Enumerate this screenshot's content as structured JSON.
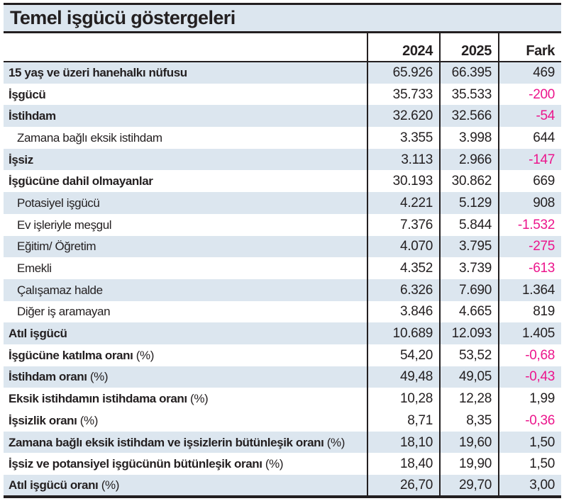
{
  "title": "Temel işgücü göstergeleri",
  "colors": {
    "text_black": "#231F20",
    "band_blue": "#DCE6EF",
    "negative_pink": "#EC158C"
  },
  "columns": [
    {
      "key": "label",
      "label": ""
    },
    {
      "key": "y2024",
      "label": "2024"
    },
    {
      "key": "y2025",
      "label": "2025"
    },
    {
      "key": "fark",
      "label": "Fark"
    }
  ],
  "rows": [
    {
      "label": "15 yaş ve üzeri hanehalkı nüfusu",
      "suffix": "",
      "bold": true,
      "indent": false,
      "shaded": true,
      "y2024": "65.926",
      "y2025": "66.395",
      "fark": "469"
    },
    {
      "label": "İşgücü",
      "suffix": "",
      "bold": true,
      "indent": false,
      "shaded": false,
      "y2024": "35.733",
      "y2025": "35.533",
      "fark": "-200"
    },
    {
      "label": "İstihdam",
      "suffix": "",
      "bold": true,
      "indent": false,
      "shaded": true,
      "y2024": "32.620",
      "y2025": "32.566",
      "fark": "-54"
    },
    {
      "label": "Zamana bağlı eksik istihdam",
      "suffix": "",
      "bold": false,
      "indent": true,
      "shaded": false,
      "y2024": "3.355",
      "y2025": "3.998",
      "fark": "644"
    },
    {
      "label": "İşsiz",
      "suffix": "",
      "bold": true,
      "indent": false,
      "shaded": true,
      "y2024": "3.113",
      "y2025": "2.966",
      "fark": "-147"
    },
    {
      "label": "İşgücüne dahil olmayanlar",
      "suffix": "",
      "bold": true,
      "indent": false,
      "shaded": false,
      "y2024": "30.193",
      "y2025": "30.862",
      "fark": "669"
    },
    {
      "label": "Potasiyel işgücü",
      "suffix": "",
      "bold": false,
      "indent": true,
      "shaded": true,
      "y2024": "4.221",
      "y2025": "5.129",
      "fark": "908"
    },
    {
      "label": "Ev işleriyle meşgul",
      "suffix": "",
      "bold": false,
      "indent": true,
      "shaded": false,
      "y2024": "7.376",
      "y2025": "5.844",
      "fark": "-1.532"
    },
    {
      "label": "Eğitim/ Öğretim",
      "suffix": "",
      "bold": false,
      "indent": true,
      "shaded": true,
      "y2024": "4.070",
      "y2025": "3.795",
      "fark": "-275"
    },
    {
      "label": "Emekli",
      "suffix": "",
      "bold": false,
      "indent": true,
      "shaded": false,
      "y2024": "4.352",
      "y2025": "3.739",
      "fark": "-613"
    },
    {
      "label": "Çalışamaz halde",
      "suffix": "",
      "bold": false,
      "indent": true,
      "shaded": true,
      "y2024": "6.326",
      "y2025": "7.690",
      "fark": "1.364"
    },
    {
      "label": "Diğer iş aramayan",
      "suffix": "",
      "bold": false,
      "indent": true,
      "shaded": false,
      "y2024": "3.846",
      "y2025": "4.665",
      "fark": "819"
    },
    {
      "label": "Atıl işgücü",
      "suffix": "",
      "bold": true,
      "indent": false,
      "shaded": true,
      "y2024": "10.689",
      "y2025": "12.093",
      "fark": "1.405"
    },
    {
      "label": "İşgücüne katılma oranı",
      "suffix": "(%)",
      "bold": true,
      "indent": false,
      "shaded": false,
      "y2024": "54,20",
      "y2025": "53,52",
      "fark": "-0,68"
    },
    {
      "label": "İstihdam oranı",
      "suffix": "(%)",
      "bold": true,
      "indent": false,
      "shaded": true,
      "y2024": "49,48",
      "y2025": "49,05",
      "fark": "-0,43"
    },
    {
      "label": "Eksik istihdamın istihdama oranı",
      "suffix": "(%)",
      "bold": true,
      "indent": false,
      "shaded": false,
      "y2024": "10,28",
      "y2025": "12,28",
      "fark": "1,99"
    },
    {
      "label": "İşsizlik oranı",
      "suffix": "(%)",
      "bold": true,
      "indent": false,
      "shaded": false,
      "y2024": "8,71",
      "y2025": "8,35",
      "fark": "-0,36"
    },
    {
      "label": "Zamana bağlı eksik istihdam ve işsizlerin bütünleşik oranı",
      "suffix": "(%)",
      "bold": true,
      "indent": false,
      "shaded": true,
      "y2024": "18,10",
      "y2025": "19,60",
      "fark": "1,50"
    },
    {
      "label": "İşsiz ve potansiyel işgücünün bütünleşik oranı",
      "suffix": "(%)",
      "bold": true,
      "indent": false,
      "shaded": false,
      "y2024": "18,40",
      "y2025": "19,90",
      "fark": "1,50"
    },
    {
      "label": "Atıl işgücü oranı",
      "suffix": "(%)",
      "bold": true,
      "indent": false,
      "shaded": true,
      "y2024": "26,70",
      "y2025": "29,70",
      "fark": "3,00"
    }
  ]
}
